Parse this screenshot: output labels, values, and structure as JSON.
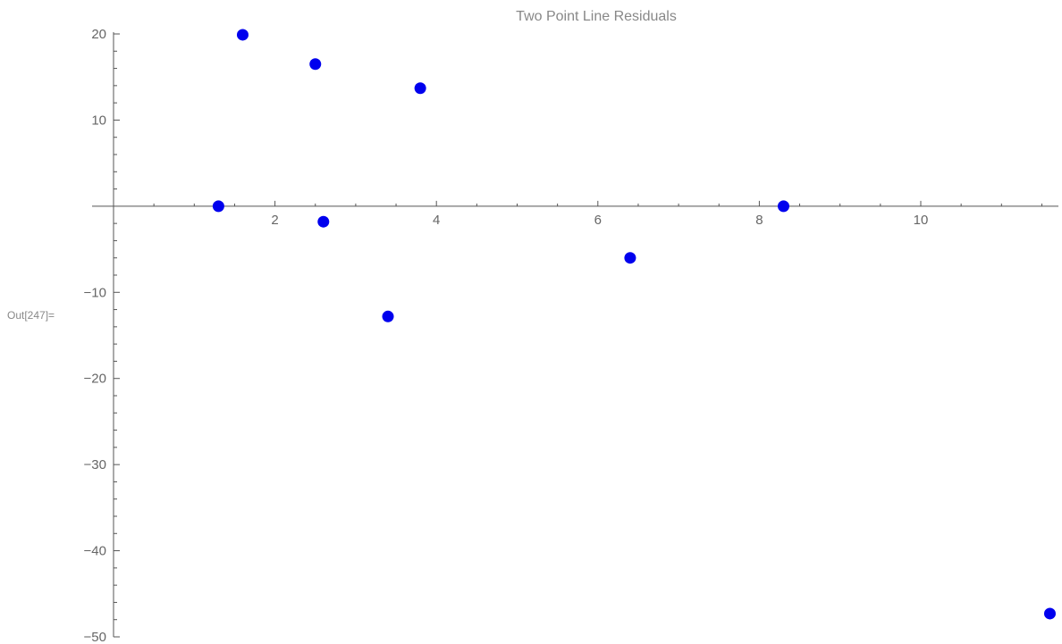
{
  "cell": {
    "out_label": "Out[247]="
  },
  "chart_data": {
    "type": "scatter",
    "title": "Two Point Line Residuals",
    "xlabel": "",
    "ylabel": "",
    "xlim": [
      0,
      11.6
    ],
    "ylim": [
      -50,
      20
    ],
    "x_ticks": [
      2,
      4,
      6,
      8,
      10
    ],
    "x_tick_labels": [
      "2",
      "4",
      "6",
      "8",
      "10"
    ],
    "y_ticks": [
      -50,
      -40,
      -30,
      -20,
      -10,
      10,
      20
    ],
    "y_tick_labels": [
      "−50",
      "−40",
      "−30",
      "−20",
      "−10",
      "10",
      "20"
    ],
    "point_color": "#0000ee",
    "axis_color": "#555555",
    "points": [
      {
        "x": 1.3,
        "y": 0.0
      },
      {
        "x": 1.6,
        "y": 19.9
      },
      {
        "x": 2.5,
        "y": 16.5
      },
      {
        "x": 2.6,
        "y": -1.8
      },
      {
        "x": 3.4,
        "y": -12.8
      },
      {
        "x": 3.8,
        "y": 13.7
      },
      {
        "x": 6.4,
        "y": -6.0
      },
      {
        "x": 8.3,
        "y": 0.0
      },
      {
        "x": 11.6,
        "y": -47.3
      }
    ]
  }
}
